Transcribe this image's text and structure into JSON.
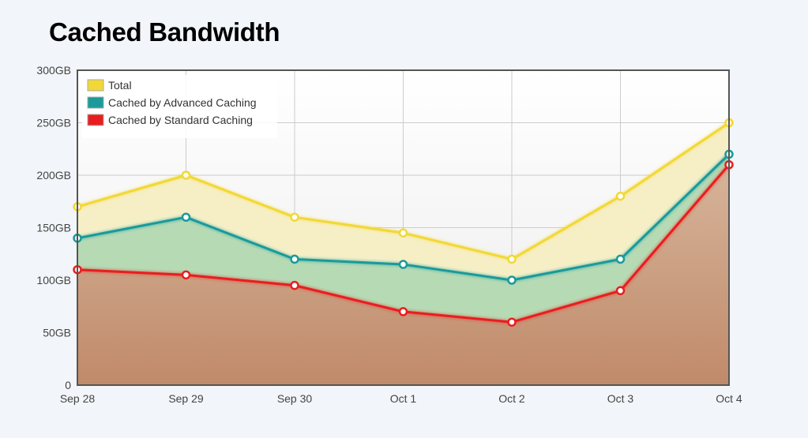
{
  "title": "Cached Bandwidth",
  "colors": {
    "total": "#f2d835",
    "advanced": "#1a9a9a",
    "standard": "#e81e1e",
    "fill_total": "#f6efc6",
    "fill_advanced": "#b6dab4",
    "fill_standard_top": "#d6b49a",
    "fill_standard_bottom": "#c08a6a",
    "frame": "#555555",
    "grid": "#cccccc"
  },
  "chart_data": {
    "type": "area",
    "title": "Cached Bandwidth",
    "xlabel": "",
    "ylabel": "",
    "categories": [
      "Sep 28",
      "Sep 29",
      "Sep 30",
      "Oct 1",
      "Oct 2",
      "Oct 3",
      "Oct 4"
    ],
    "y_ticks": [
      "0",
      "50GB",
      "100GB",
      "150GB",
      "200GB",
      "250GB",
      "300GB"
    ],
    "ylim": [
      0,
      300
    ],
    "grid": true,
    "legend_position": "top-left",
    "series": [
      {
        "name": "Total",
        "color": "#f2d835",
        "values": [
          170,
          200,
          160,
          145,
          120,
          180,
          250
        ]
      },
      {
        "name": "Cached by Advanced Caching",
        "color": "#1a9a9a",
        "values": [
          140,
          160,
          120,
          115,
          100,
          120,
          220
        ]
      },
      {
        "name": "Cached by Standard Caching",
        "color": "#e81e1e",
        "values": [
          110,
          105,
          95,
          70,
          60,
          90,
          210
        ]
      }
    ]
  }
}
